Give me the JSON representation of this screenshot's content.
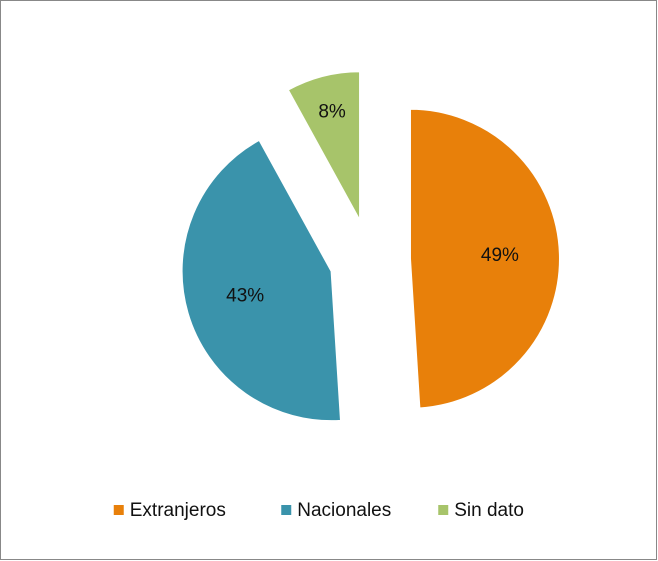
{
  "chart_data": {
    "type": "pie",
    "categories": [
      "Extranjeros",
      "Nacionales",
      "Sin dato"
    ],
    "values": [
      49,
      43,
      8
    ],
    "value_labels": [
      "49%",
      "43%",
      "8%"
    ],
    "colors": [
      "#e8800a",
      "#3a93ab",
      "#a7c46a"
    ],
    "exploded": true,
    "legend": "bottom"
  }
}
